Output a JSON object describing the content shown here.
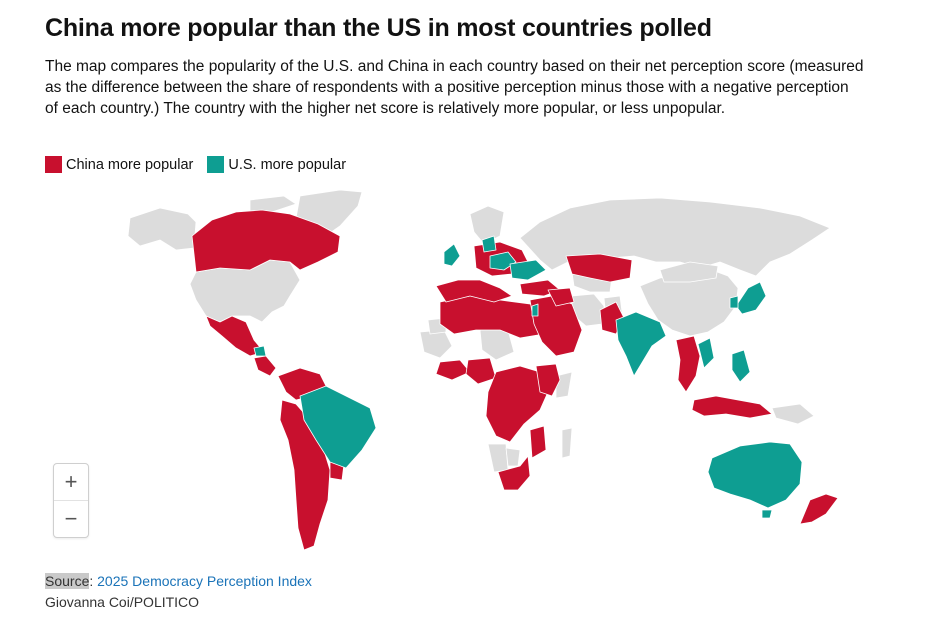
{
  "title": "China more popular than the US in most countries polled",
  "subtitle": "The map compares the popularity of the U.S. and China in each country based on their net perception score (measured as the difference between the share of respondents with a positive perception minus those with a negative perception of each country.) The country with the higher net score is relatively more popular, or less unpopular.",
  "legend": {
    "china_label": "China more popular",
    "us_label": "U.S. more popular"
  },
  "colors": {
    "china": "#c8102e",
    "us": "#0e9e92",
    "no_data": "#dcdcdc"
  },
  "zoom": {
    "in_label": "+",
    "out_label": "−"
  },
  "source": {
    "label": "Source",
    "link_text": "2025 Democracy Perception Index"
  },
  "credit": "Giovanna Coi/POLITICO"
}
